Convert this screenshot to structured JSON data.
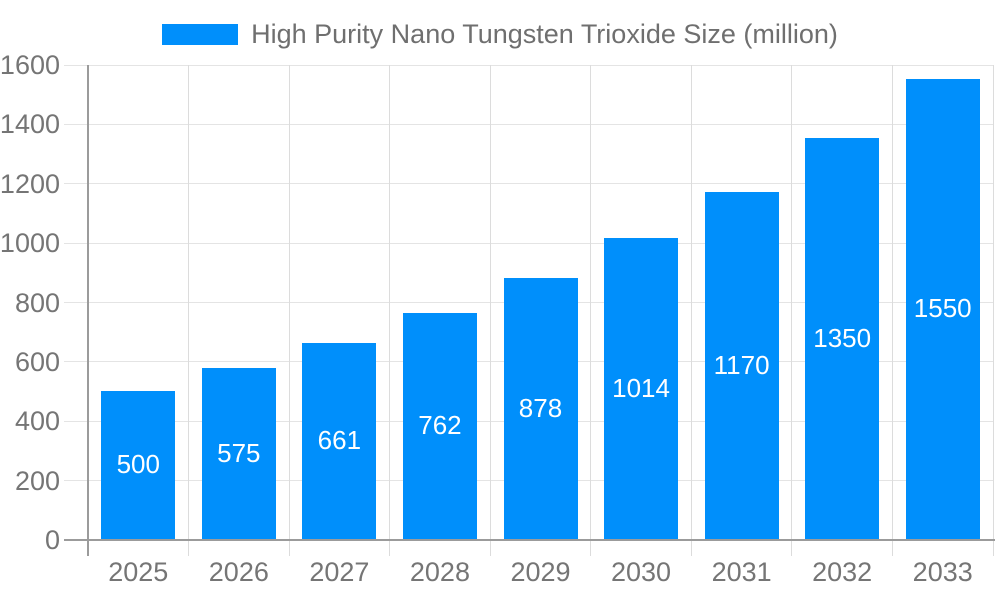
{
  "legend": {
    "label": "High Purity Nano Tungsten Trioxide Size (million)",
    "swatch_color": "#008FFB"
  },
  "chart_data": {
    "type": "bar",
    "title": "High Purity Nano Tungsten Trioxide Size (million)",
    "series_name": "High Purity Nano Tungsten Trioxide Size (million)",
    "categories": [
      "2025",
      "2026",
      "2027",
      "2028",
      "2029",
      "2030",
      "2031",
      "2032",
      "2033"
    ],
    "values": [
      500,
      575,
      661,
      762,
      878,
      1014,
      1170,
      1350,
      1550
    ],
    "data_labels": [
      "500",
      "575",
      "661",
      "762",
      "878",
      "1014",
      "1170",
      "1350",
      "1550"
    ],
    "xlabel": "",
    "ylabel": "",
    "ylim": [
      0,
      1600
    ],
    "ytick_step": 200,
    "yticks": [
      0,
      200,
      400,
      600,
      800,
      1000,
      1200,
      1400,
      1600
    ],
    "grid": true,
    "legend_position": "top-center",
    "bar_color": "#008FFB",
    "bar_label_color": "#ffffff",
    "axis_text_color": "#757575",
    "grid_color": "#e4e4e4",
    "axis_line_color": "#9b9b9b",
    "background_color": "#ffffff"
  }
}
